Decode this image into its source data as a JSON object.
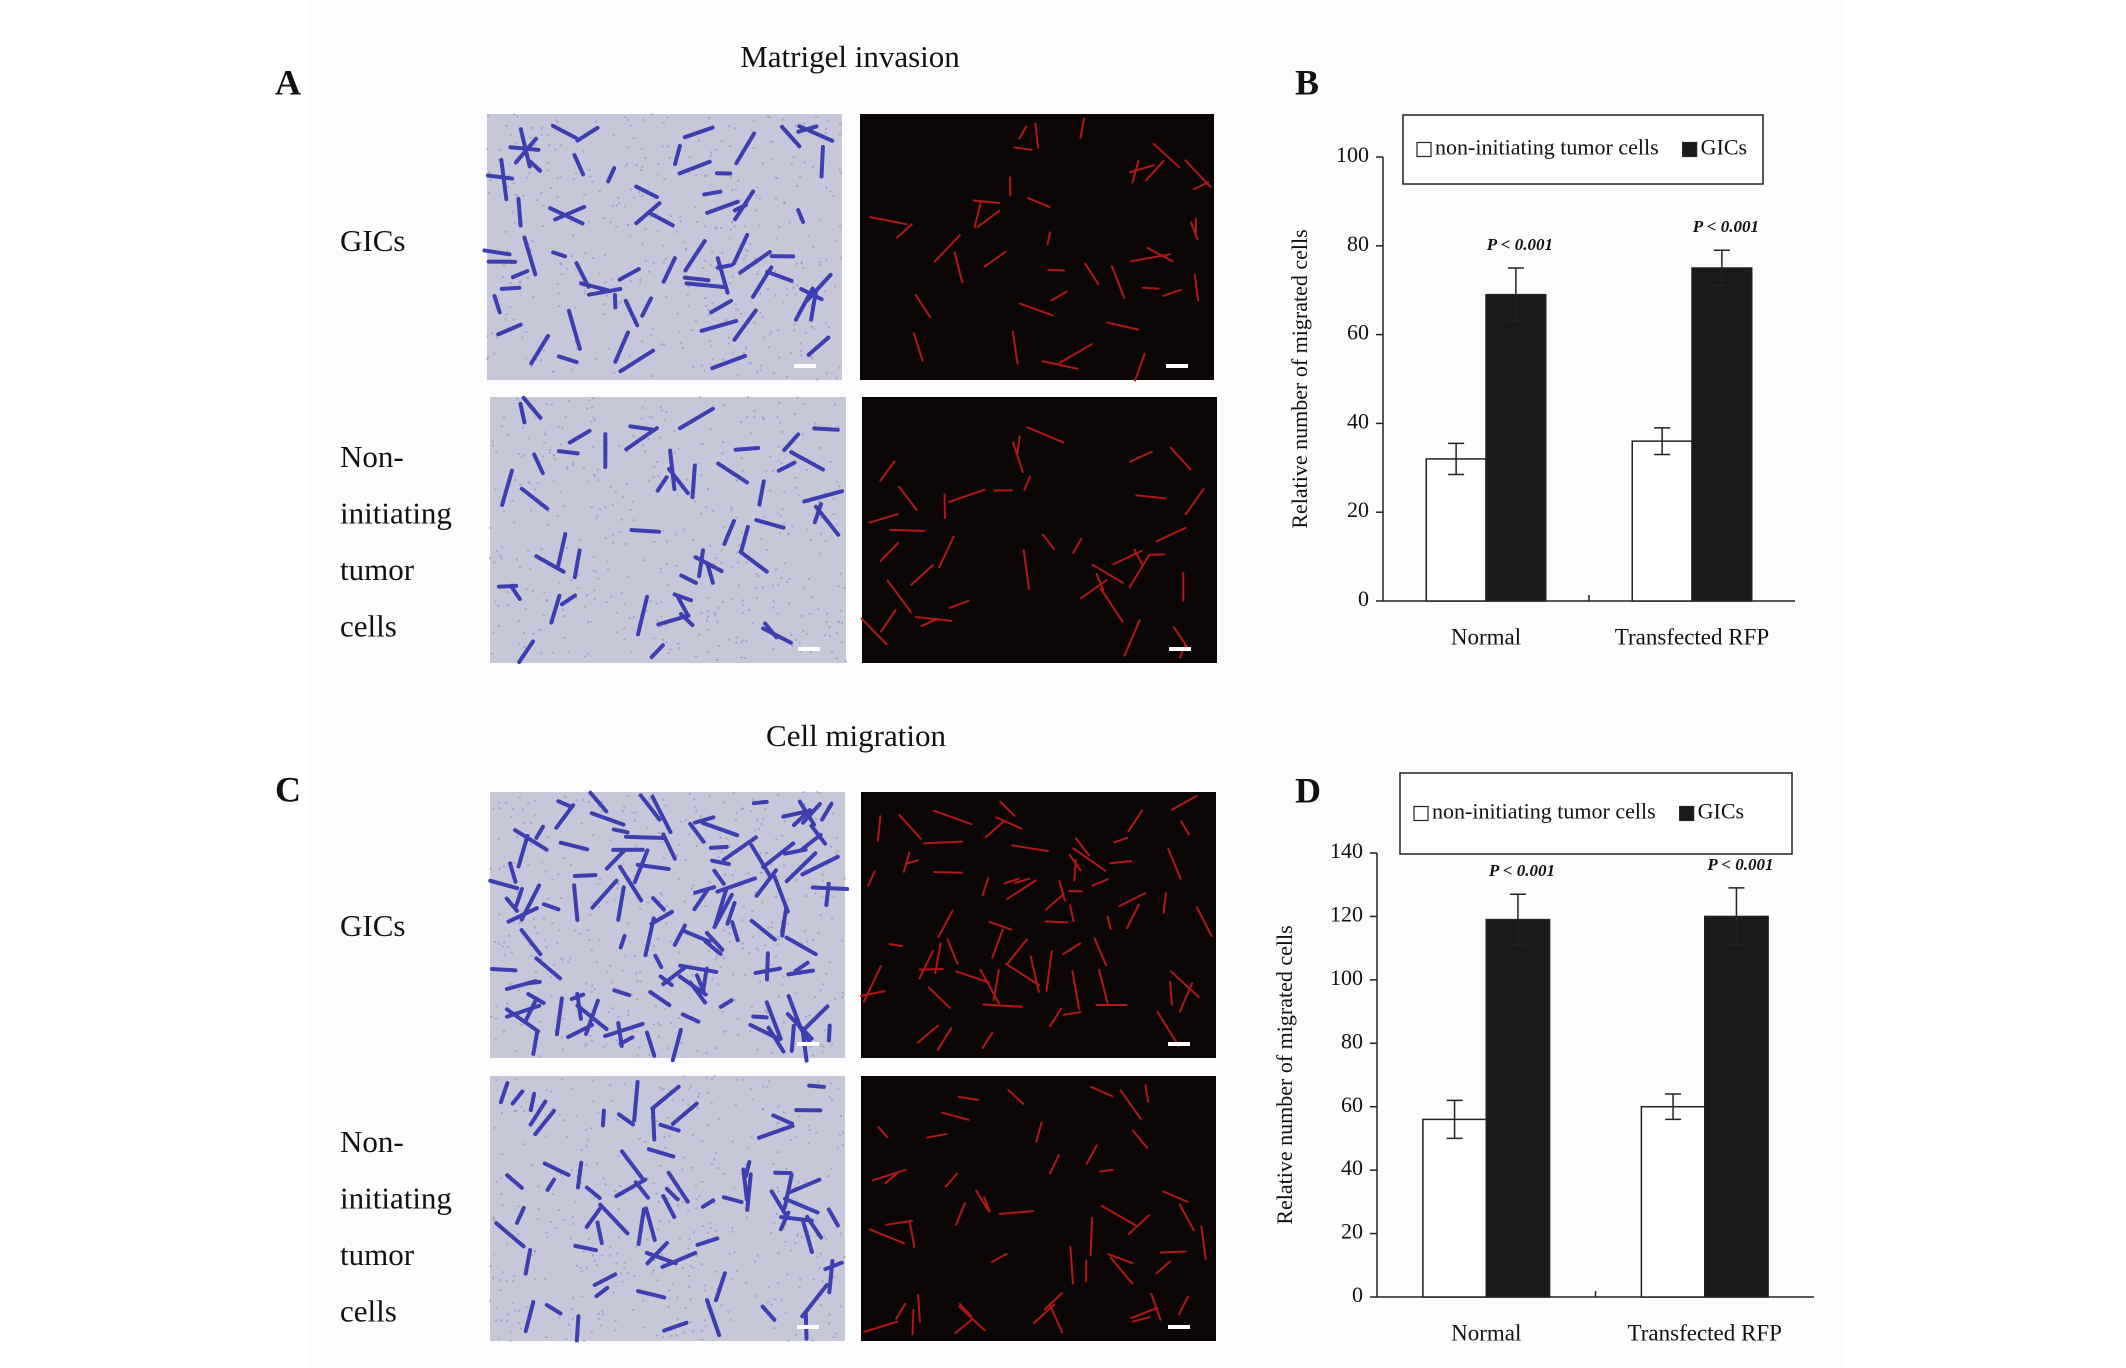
{
  "panel_a": {
    "letter": "A",
    "title": "Matrigel invasion",
    "row_labels": [
      [
        "GICs"
      ],
      [
        "Non-",
        "initiating",
        "tumor",
        "cells"
      ]
    ]
  },
  "panel_b": {
    "letter": "B"
  },
  "panel_c": {
    "letter": "C",
    "title": "Cell migration",
    "row_labels": [
      [
        "GICs"
      ],
      [
        "Non-",
        "initiating",
        "tumor",
        "cells"
      ]
    ]
  },
  "panel_d": {
    "letter": "D"
  },
  "chart_data": [
    {
      "type": "bar",
      "y_label": "Relative number of migrated cells",
      "categories": [
        "Normal",
        "Transfected RFP"
      ],
      "series": [
        {
          "name": "non-initiating tumor cells",
          "color": "#ffffff",
          "values": [
            32,
            36
          ],
          "errors": [
            3.5,
            3
          ]
        },
        {
          "name": "GICs",
          "color": "#1a1a1a",
          "values": [
            69,
            75
          ],
          "errors": [
            6,
            4
          ]
        }
      ],
      "annotations": [
        "P < 0.001",
        "P < 0.001"
      ],
      "ylim": [
        0,
        100
      ],
      "yticks": [
        0,
        20,
        40,
        60,
        80,
        100
      ],
      "legend": "top"
    },
    {
      "type": "bar",
      "y_label": "Relative number of migrated cells",
      "categories": [
        "Normal",
        "Transfected RFP"
      ],
      "series": [
        {
          "name": "non-initiating tumor cells",
          "color": "#ffffff",
          "values": [
            56,
            60
          ],
          "errors": [
            6,
            4
          ]
        },
        {
          "name": "GICs",
          "color": "#1a1a1a",
          "values": [
            119,
            120
          ],
          "errors": [
            8,
            9
          ]
        }
      ],
      "annotations": [
        "P < 0.001",
        "P < 0.001"
      ],
      "ylim": [
        0,
        140
      ],
      "yticks": [
        0,
        20,
        40,
        60,
        80,
        100,
        120,
        140
      ],
      "legend": "top"
    }
  ]
}
